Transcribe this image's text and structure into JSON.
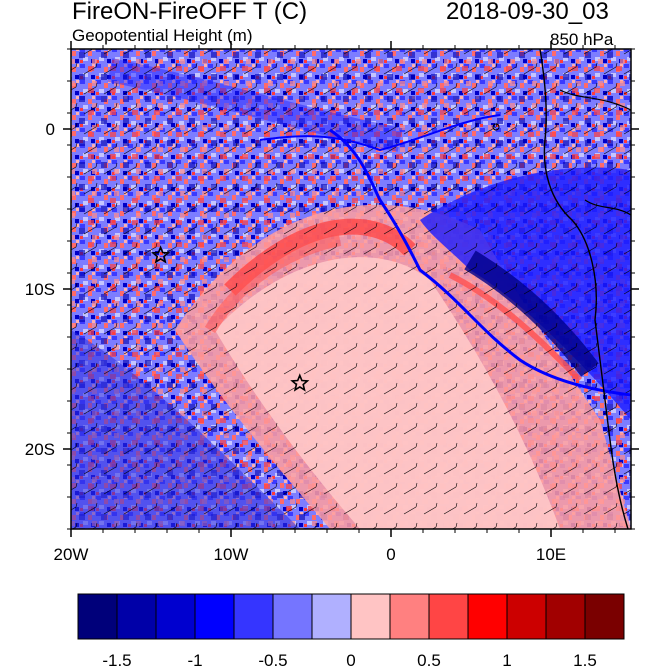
{
  "header": {
    "title_left": "FireON-FireOFF T (C)",
    "subtitle_left": "Geopotential Height (m)",
    "title_right": "2018-09-30_03",
    "subtitle_right": "850 hPa"
  },
  "chart_data": {
    "type": "heatmap",
    "title": "FireON-FireOFF T (C)",
    "overlay": "Geopotential Height (m) contours with wind barbs",
    "level": "850 hPa",
    "valid_time": "2018-09-30_03",
    "xlim": [
      -20,
      15
    ],
    "ylim": [
      -25,
      5
    ],
    "x_ticks": [
      {
        "value": -20,
        "label": "20W"
      },
      {
        "value": -10,
        "label": "10W"
      },
      {
        "value": 0,
        "label": "0"
      },
      {
        "value": 10,
        "label": "10E"
      }
    ],
    "y_ticks": [
      {
        "value": 0,
        "label": "0"
      },
      {
        "value": -10,
        "label": "10S"
      },
      {
        "value": -20,
        "label": "20S"
      }
    ],
    "stars": [
      {
        "lon": -14.4,
        "lat": -7.9
      },
      {
        "lon": -5.7,
        "lat": -15.9
      }
    ],
    "colorbar": {
      "levels": [
        -1.75,
        -1.5,
        -1.25,
        -1,
        -0.75,
        -0.5,
        -0.25,
        0,
        0.25,
        0.5,
        0.75,
        1,
        1.25,
        1.5,
        1.75
      ],
      "tick_labels": [
        "-1.5",
        "-1",
        "-0.5",
        "0",
        "0.5",
        "1",
        "1.5"
      ],
      "tick_values": [
        -1.5,
        -1,
        -0.5,
        0,
        0.5,
        1,
        1.5
      ],
      "colors": [
        "#00007a",
        "#0000a8",
        "#0000cf",
        "#0000ff",
        "#3535ff",
        "#7575ff",
        "#b0b0ff",
        "#ffc4c4",
        "#ff8080",
        "#ff4545",
        "#ff0000",
        "#cc0000",
        "#a10000",
        "#7a0000"
      ]
    }
  }
}
